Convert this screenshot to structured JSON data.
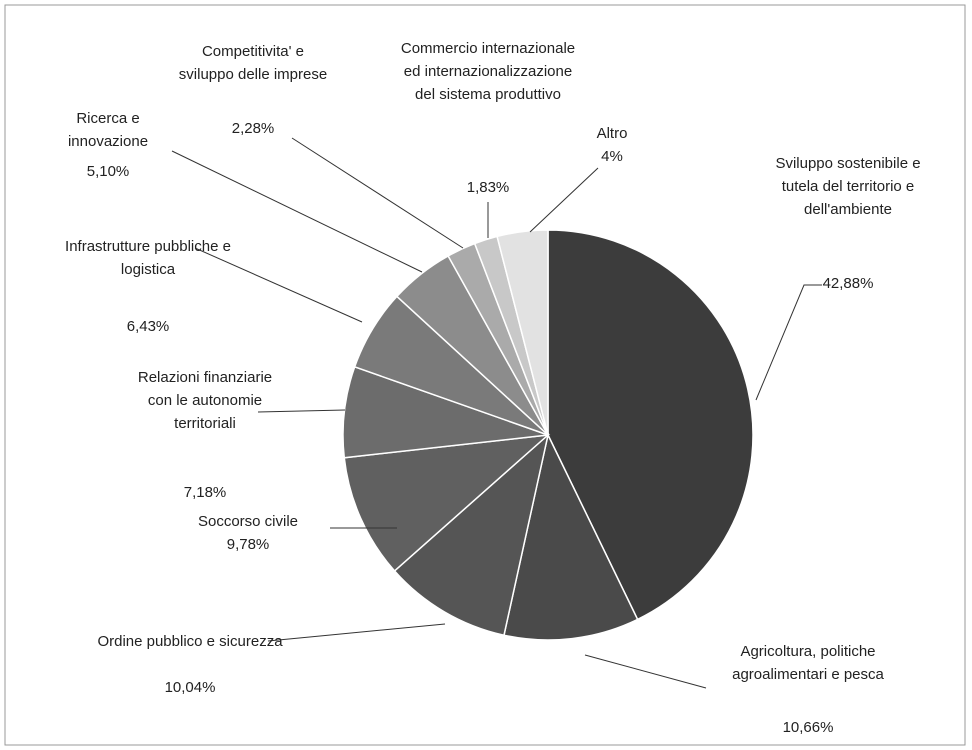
{
  "chart_data": {
    "type": "pie",
    "categories": [
      "Sviluppo sostenibile e tutela del territorio e dell'ambiente",
      "Agricoltura, politiche agroalimentari e pesca",
      "Ordine pubblico e sicurezza",
      "Soccorso civile",
      "Relazioni finanziarie con le autonomie territoriali",
      "Infrastrutture pubbliche e logistica",
      "Ricerca e innovazione",
      "Competitivita' e sviluppo delle imprese",
      "Commercio internazionale ed internazionalizzazione del sistema produttivo",
      "Altro"
    ],
    "values": [
      42.88,
      10.66,
      10.04,
      9.78,
      7.18,
      6.43,
      5.1,
      2.28,
      1.83,
      4
    ],
    "value_labels": [
      "42,88%",
      "10,66%",
      "10,04%",
      "9,78%",
      "7,18%",
      "6,43%",
      "5,10%",
      "2,28%",
      "1,83%",
      "4%"
    ],
    "colors": [
      "#3c3c3c",
      "#4a4a4a",
      "#555555",
      "#606060",
      "#6c6c6c",
      "#7a7a7a",
      "#8c8c8c",
      "#aaaaaa",
      "#c8c8c8",
      "#e2e2e2"
    ]
  }
}
